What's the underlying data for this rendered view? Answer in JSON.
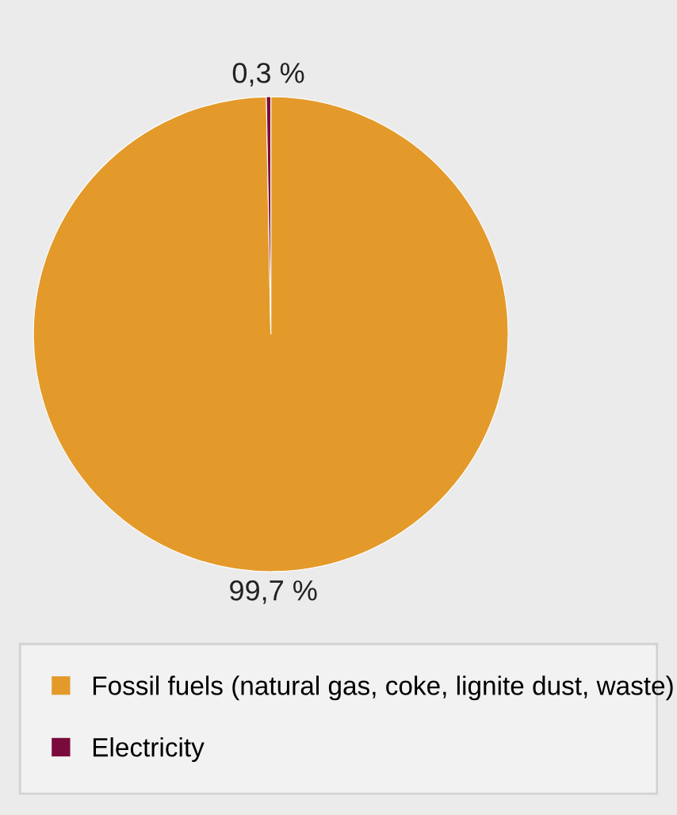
{
  "chart_data": {
    "type": "pie",
    "categories": [
      "Fossil fuels (natural gas, coke, lignite dust, waste)",
      "Electricity"
    ],
    "values": [
      99.7,
      0.3
    ],
    "value_labels": [
      "99,7 %",
      "0,3 %"
    ],
    "colors": [
      "#e39a2b",
      "#7b0a3c"
    ],
    "legend": "bottom"
  }
}
